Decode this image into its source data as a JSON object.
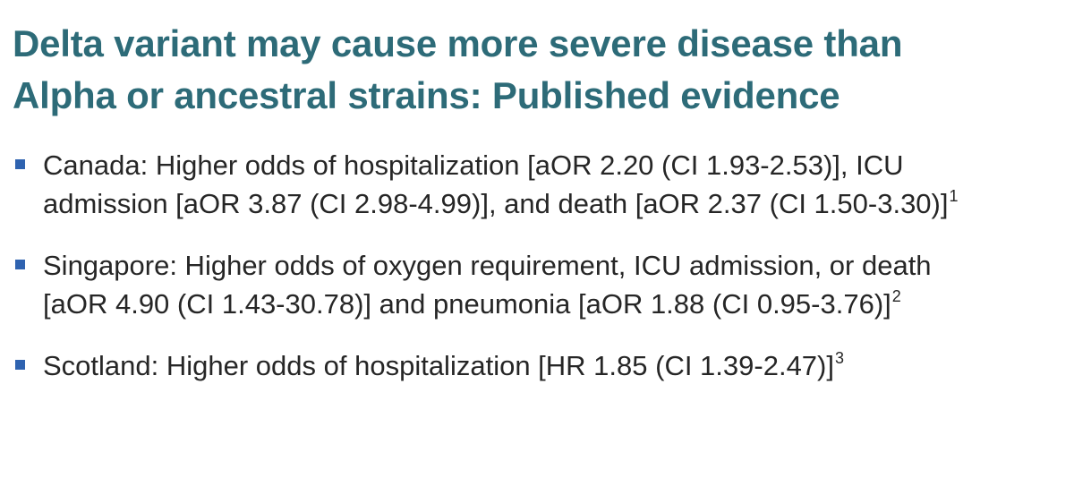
{
  "slide": {
    "title_line1": "Delta variant may cause more severe disease than",
    "title_line2": "Alpha or ancestral strains: Published evidence",
    "bullets": [
      {
        "line1": "Canada: Higher odds of hospitalization [aOR 2.20 (CI 1.93-2.53)], ICU",
        "line2": "admission [aOR 3.87 (CI 2.98-4.99)], and death [aOR 2.37 (CI 1.50-3.30)]",
        "ref": "1"
      },
      {
        "line1": "Singapore: Higher odds of oxygen requirement, ICU admission, or death",
        "line2": "[aOR 4.90 (CI 1.43-30.78)] and pneumonia [aOR 1.88 (CI 0.95-3.76)]",
        "ref": "2"
      },
      {
        "line1": "Scotland: Higher odds of hospitalization [HR 1.85 (CI 1.39-2.47)]",
        "ref": "3"
      }
    ]
  },
  "colors": {
    "title": "#2d6b78",
    "bullet_marker": "#2f63b0",
    "body_text": "#262626"
  },
  "icons": {
    "bullet_marker": "square-bullet-icon"
  }
}
